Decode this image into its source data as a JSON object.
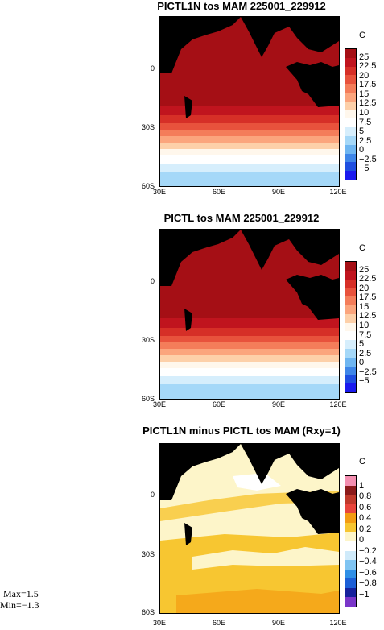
{
  "panels": [
    {
      "title": "PICTL1N tos MAM 225001_229912",
      "unit": "C",
      "colorbar": {
        "labels": [
          "25",
          "22.5",
          "20",
          "17.5",
          "15",
          "12.5",
          "10",
          "7.5",
          "5",
          "2.5",
          "0",
          "−2.5",
          "−5"
        ],
        "colors": [
          "#a50f15",
          "#c0141e",
          "#d62f27",
          "#e8523c",
          "#f47d5a",
          "#fba57d",
          "#fdd0a9",
          "#fff7ec",
          "#ffffff",
          "#d6eefc",
          "#a5d8f8",
          "#6fb6f1",
          "#3f86e8",
          "#1f4fe0",
          "#1a1aee"
        ]
      }
    },
    {
      "title": "PICTL tos MAM 225001_229912",
      "unit": "C",
      "colorbar": {
        "labels": [
          "25",
          "22.5",
          "20",
          "17.5",
          "15",
          "12.5",
          "10",
          "7.5",
          "5",
          "2.5",
          "0",
          "−2.5",
          "−5"
        ],
        "colors": [
          "#a50f15",
          "#c0141e",
          "#d62f27",
          "#e8523c",
          "#f47d5a",
          "#fba57d",
          "#fdd0a9",
          "#fff7ec",
          "#ffffff",
          "#d6eefc",
          "#a5d8f8",
          "#6fb6f1",
          "#3f86e8",
          "#1f4fe0",
          "#1a1aee"
        ]
      }
    },
    {
      "title": "PICTL1N minus PICTL tos MAM (Rxy=1)",
      "unit": "C",
      "colorbar": {
        "labels": [
          "1",
          "0.8",
          "0.6",
          "0.4",
          "0.2",
          "0",
          "−0.2",
          "−0.4",
          "−0.6",
          "−0.8",
          "−1"
        ],
        "colors": [
          "#f48fb1",
          "#8b1a1a",
          "#c0392b",
          "#e8453c",
          "#f39c12",
          "#f7c631",
          "#fdf5c9",
          "#ffffff",
          "#cfeafa",
          "#7fc4f2",
          "#2f8fe6",
          "#1c5fd6",
          "#16219c",
          "#7a36c9"
        ]
      }
    }
  ],
  "axes": {
    "y_ticks": [
      "0",
      "30S",
      "60S"
    ],
    "x_ticks": [
      "30E",
      "60E",
      "90E",
      "120E"
    ]
  },
  "stats": {
    "max": "Max=1.5",
    "min": "Min=−1.3"
  }
}
